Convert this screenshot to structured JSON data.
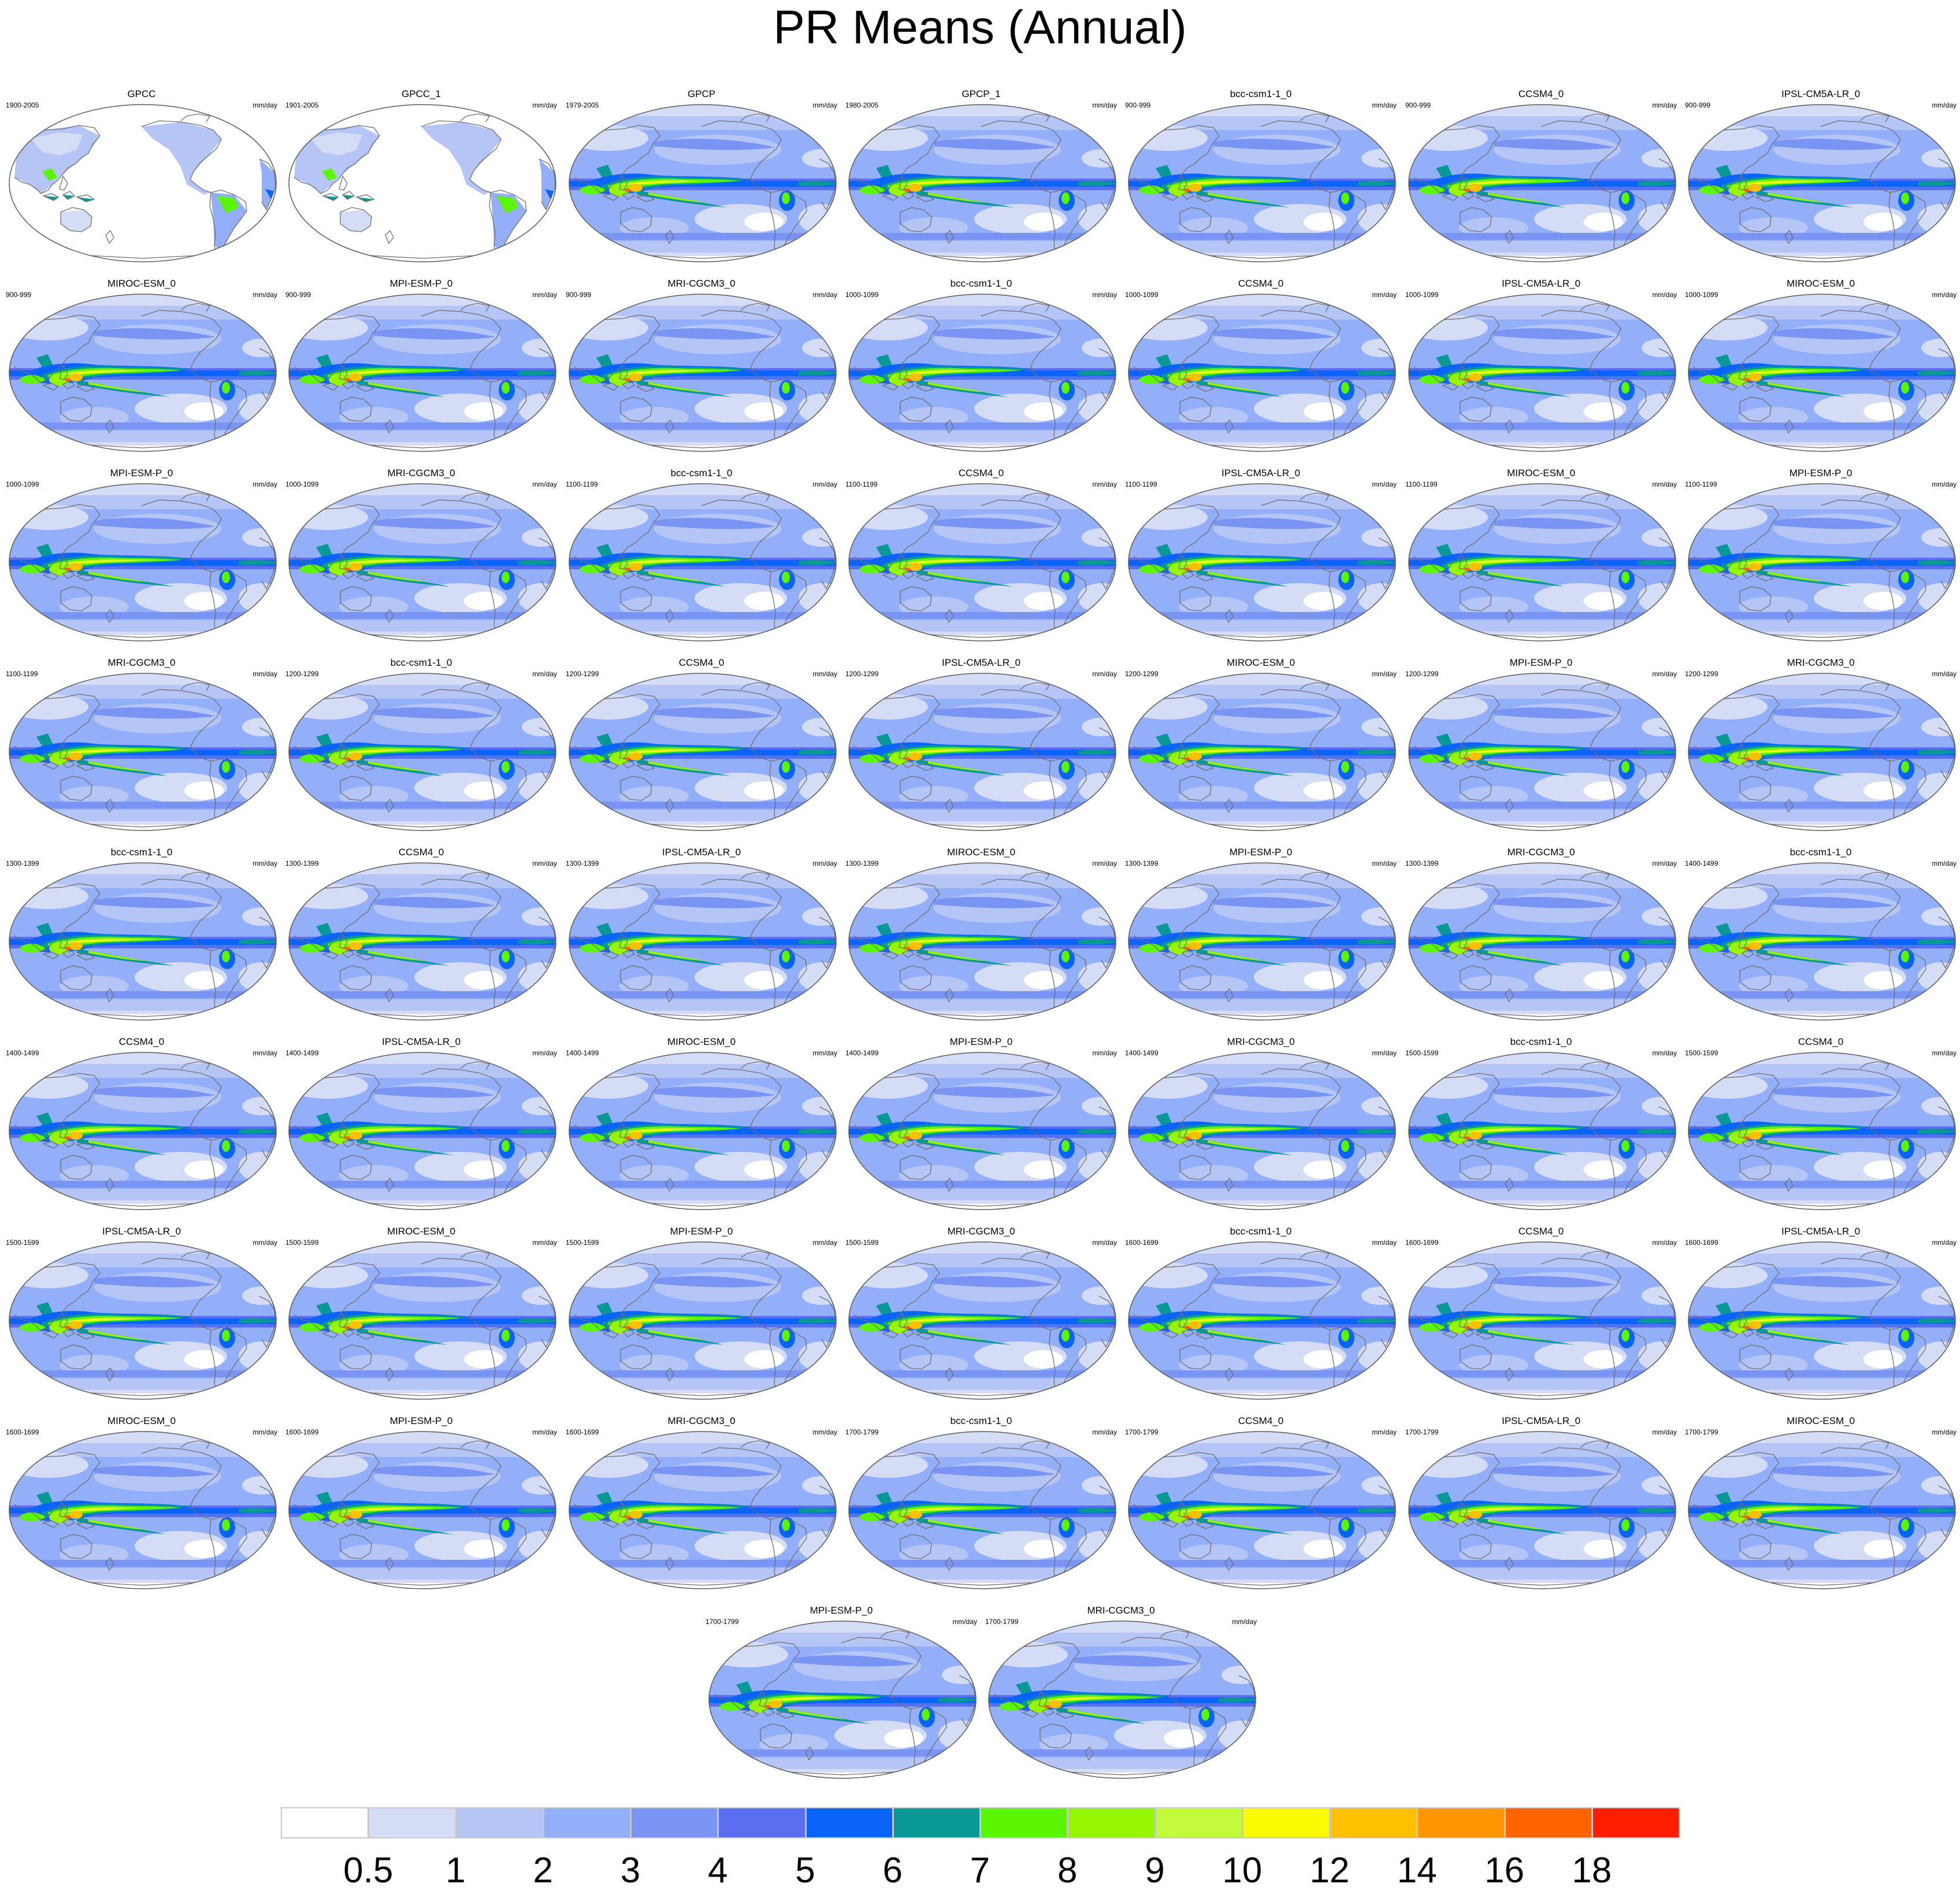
{
  "title": "PR Means (Annual)",
  "units": "mm/day",
  "colors": {
    "ocean_outline": "#5a5a5a",
    "coast": "#6e6e6e",
    "colorbar": [
      "#ffffff",
      "#d4dcf6",
      "#b4c5f6",
      "#94affa",
      "#7a94f4",
      "#5c6ef0",
      "#0a64fa",
      "#0a9896",
      "#5cf500",
      "#96f500",
      "#c3fa3c",
      "#fafa00",
      "#ffc000",
      "#ff9600",
      "#ff6400",
      "#ff1e00"
    ]
  },
  "colorbar_labels": [
    "0.5",
    "1",
    "2",
    "3",
    "4",
    "5",
    "6",
    "7",
    "8",
    "9",
    "10",
    "12",
    "14",
    "16",
    "18"
  ],
  "panels": [
    {
      "title": "GPCC",
      "period": "1900-2005",
      "kind": "land"
    },
    {
      "title": "GPCC_1",
      "period": "1901-2005",
      "kind": "land"
    },
    {
      "title": "GPCP",
      "period": "1979-2005",
      "kind": "full"
    },
    {
      "title": "GPCP_1",
      "period": "1980-2005",
      "kind": "full"
    },
    {
      "title": "bcc-csm1-1_0",
      "period": "900-999",
      "kind": "full"
    },
    {
      "title": "CCSM4_0",
      "period": "900-999",
      "kind": "full"
    },
    {
      "title": "IPSL-CM5A-LR_0",
      "period": "900-999",
      "kind": "full"
    },
    {
      "title": "MIROC-ESM_0",
      "period": "900-999",
      "kind": "full"
    },
    {
      "title": "MPI-ESM-P_0",
      "period": "900-999",
      "kind": "full"
    },
    {
      "title": "MRI-CGCM3_0",
      "period": "900-999",
      "kind": "full"
    },
    {
      "title": "bcc-csm1-1_0",
      "period": "1000-1099",
      "kind": "full"
    },
    {
      "title": "CCSM4_0",
      "period": "1000-1099",
      "kind": "full"
    },
    {
      "title": "IPSL-CM5A-LR_0",
      "period": "1000-1099",
      "kind": "full"
    },
    {
      "title": "MIROC-ESM_0",
      "period": "1000-1099",
      "kind": "full"
    },
    {
      "title": "MPI-ESM-P_0",
      "period": "1000-1099",
      "kind": "full"
    },
    {
      "title": "MRI-CGCM3_0",
      "period": "1000-1099",
      "kind": "full"
    },
    {
      "title": "bcc-csm1-1_0",
      "period": "1100-1199",
      "kind": "full"
    },
    {
      "title": "CCSM4_0",
      "period": "1100-1199",
      "kind": "full"
    },
    {
      "title": "IPSL-CM5A-LR_0",
      "period": "1100-1199",
      "kind": "full"
    },
    {
      "title": "MIROC-ESM_0",
      "period": "1100-1199",
      "kind": "full"
    },
    {
      "title": "MPI-ESM-P_0",
      "period": "1100-1199",
      "kind": "full"
    },
    {
      "title": "MRI-CGCM3_0",
      "period": "1100-1199",
      "kind": "full"
    },
    {
      "title": "bcc-csm1-1_0",
      "period": "1200-1299",
      "kind": "full"
    },
    {
      "title": "CCSM4_0",
      "period": "1200-1299",
      "kind": "full"
    },
    {
      "title": "IPSL-CM5A-LR_0",
      "period": "1200-1299",
      "kind": "full"
    },
    {
      "title": "MIROC-ESM_0",
      "period": "1200-1299",
      "kind": "full"
    },
    {
      "title": "MPI-ESM-P_0",
      "period": "1200-1299",
      "kind": "full"
    },
    {
      "title": "MRI-CGCM3_0",
      "period": "1200-1299",
      "kind": "full"
    },
    {
      "title": "bcc-csm1-1_0",
      "period": "1300-1399",
      "kind": "full"
    },
    {
      "title": "CCSM4_0",
      "period": "1300-1399",
      "kind": "full"
    },
    {
      "title": "IPSL-CM5A-LR_0",
      "period": "1300-1399",
      "kind": "full"
    },
    {
      "title": "MIROC-ESM_0",
      "period": "1300-1399",
      "kind": "full"
    },
    {
      "title": "MPI-ESM-P_0",
      "period": "1300-1399",
      "kind": "full"
    },
    {
      "title": "MRI-CGCM3_0",
      "period": "1300-1399",
      "kind": "full"
    },
    {
      "title": "bcc-csm1-1_0",
      "period": "1400-1499",
      "kind": "full"
    },
    {
      "title": "CCSM4_0",
      "period": "1400-1499",
      "kind": "full"
    },
    {
      "title": "IPSL-CM5A-LR_0",
      "period": "1400-1499",
      "kind": "full"
    },
    {
      "title": "MIROC-ESM_0",
      "period": "1400-1499",
      "kind": "full"
    },
    {
      "title": "MPI-ESM-P_0",
      "period": "1400-1499",
      "kind": "full"
    },
    {
      "title": "MRI-CGCM3_0",
      "period": "1400-1499",
      "kind": "full"
    },
    {
      "title": "bcc-csm1-1_0",
      "period": "1500-1599",
      "kind": "full"
    },
    {
      "title": "CCSM4_0",
      "period": "1500-1599",
      "kind": "full"
    },
    {
      "title": "IPSL-CM5A-LR_0",
      "period": "1500-1599",
      "kind": "full"
    },
    {
      "title": "MIROC-ESM_0",
      "period": "1500-1599",
      "kind": "full"
    },
    {
      "title": "MPI-ESM-P_0",
      "period": "1500-1599",
      "kind": "full"
    },
    {
      "title": "MRI-CGCM3_0",
      "period": "1500-1599",
      "kind": "full"
    },
    {
      "title": "bcc-csm1-1_0",
      "period": "1600-1699",
      "kind": "full"
    },
    {
      "title": "CCSM4_0",
      "period": "1600-1699",
      "kind": "full"
    },
    {
      "title": "IPSL-CM5A-LR_0",
      "period": "1600-1699",
      "kind": "full"
    },
    {
      "title": "MIROC-ESM_0",
      "period": "1600-1699",
      "kind": "full"
    },
    {
      "title": "MPI-ESM-P_0",
      "period": "1600-1699",
      "kind": "full"
    },
    {
      "title": "MRI-CGCM3_0",
      "period": "1600-1699",
      "kind": "full"
    },
    {
      "title": "bcc-csm1-1_0",
      "period": "1700-1799",
      "kind": "full"
    },
    {
      "title": "CCSM4_0",
      "period": "1700-1799",
      "kind": "full"
    },
    {
      "title": "IPSL-CM5A-LR_0",
      "period": "1700-1799",
      "kind": "full"
    },
    {
      "title": "MIROC-ESM_0",
      "period": "1700-1799",
      "kind": "full"
    },
    {
      "title": "MPI-ESM-P_0",
      "period": "1700-1799",
      "kind": "full"
    },
    {
      "title": "MRI-CGCM3_0",
      "period": "1700-1799",
      "kind": "full"
    }
  ]
}
